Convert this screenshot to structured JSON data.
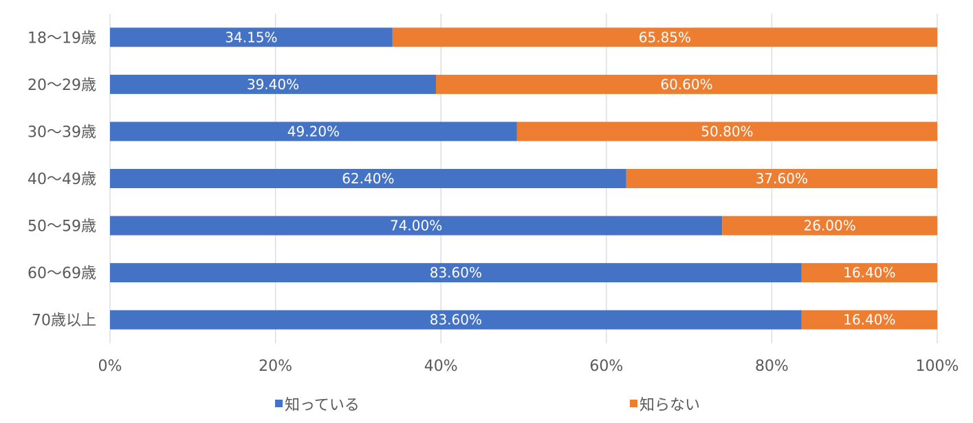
{
  "chart_data": {
    "type": "bar",
    "orientation": "horizontal",
    "stacked": "percent",
    "title": "",
    "xlabel": "",
    "ylabel": "",
    "xlim": [
      0,
      100
    ],
    "x_ticks": [
      "0%",
      "20%",
      "40%",
      "60%",
      "80%",
      "100%"
    ],
    "categories": [
      "18～19歳",
      "20～29歳",
      "30～39歳",
      "40～49歳",
      "50～59歳",
      "60～69歳",
      "70歳以上"
    ],
    "series": [
      {
        "name": "知っている",
        "color": "#4472C4",
        "values": [
          34.15,
          39.4,
          49.2,
          62.4,
          74.0,
          83.6,
          83.6
        ],
        "labels": [
          "34.15%",
          "39.40%",
          "49.20%",
          "62.40%",
          "74.00%",
          "83.60%",
          "83.60%"
        ]
      },
      {
        "name": "知らない",
        "color": "#ED7D31",
        "values": [
          65.85,
          60.6,
          50.8,
          37.6,
          26.0,
          16.4,
          16.4
        ],
        "labels": [
          "65.85%",
          "60.60%",
          "50.80%",
          "37.60%",
          "26.00%",
          "16.40%",
          "16.40%"
        ]
      }
    ],
    "grid": true,
    "legend_position": "bottom"
  }
}
